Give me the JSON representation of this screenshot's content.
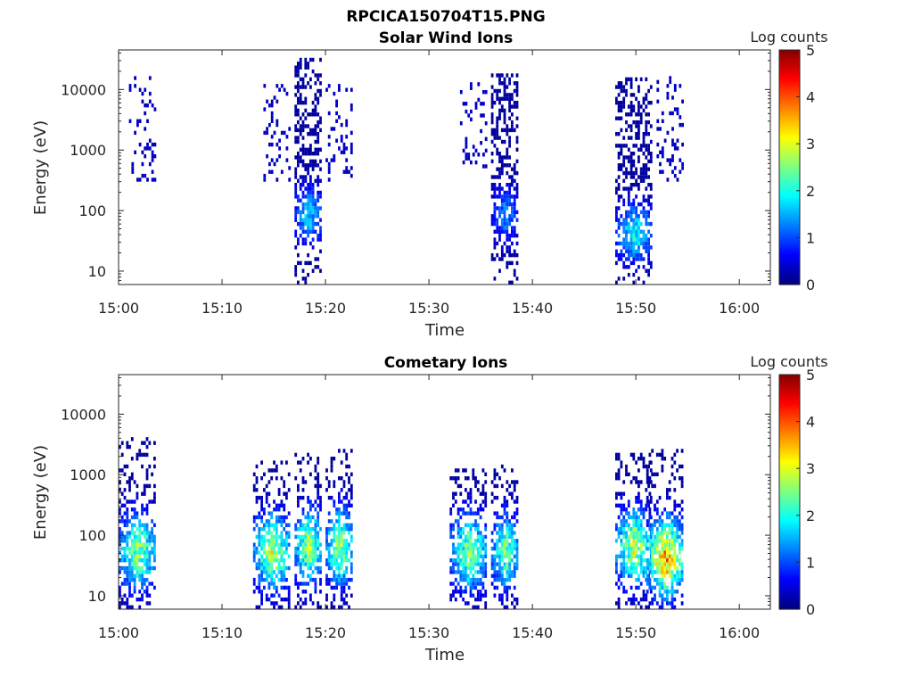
{
  "figure": {
    "title": "RPCICA150704T15.PNG"
  },
  "chart_data": [
    {
      "type": "heatmap",
      "title": "Solar Wind Ions",
      "xlabel": "Time",
      "ylabel": "Energy (eV)",
      "y_scale": "log",
      "xlim": [
        "15:00",
        "16:03"
      ],
      "ylim": [
        6,
        45000
      ],
      "x_ticks": [
        "15:00",
        "15:10",
        "15:20",
        "15:30",
        "15:40",
        "15:50",
        "16:00"
      ],
      "y_ticks": [
        "10",
        "100",
        "1000",
        "10000"
      ],
      "colorbar": {
        "label": "Log counts",
        "range": [
          0,
          5
        ],
        "ticks": [
          "0",
          "1",
          "2",
          "3",
          "4",
          "5"
        ],
        "colormap": "jet"
      },
      "grid": false,
      "bursts": [
        {
          "t_start": "15:01",
          "t_end": "15:03",
          "e_min": 300,
          "e_max": 15000,
          "peak_log_counts": 0.4,
          "peak_energy": 3000,
          "core": false
        },
        {
          "t_start": "15:14",
          "t_end": "15:16",
          "e_min": 300,
          "e_max": 12000,
          "peak_log_counts": 0.4,
          "peak_energy": 3000,
          "core": false
        },
        {
          "t_start": "15:17",
          "t_end": "15:19",
          "e_min": 6,
          "e_max": 30000,
          "peak_log_counts": 2.0,
          "peak_energy": 80,
          "core": true
        },
        {
          "t_start": "15:20",
          "t_end": "15:22",
          "e_min": 300,
          "e_max": 12000,
          "peak_log_counts": 0.4,
          "peak_energy": 3000,
          "core": false
        },
        {
          "t_start": "15:33",
          "t_end": "15:35",
          "e_min": 500,
          "e_max": 12000,
          "peak_log_counts": 0.4,
          "peak_energy": 3000,
          "core": false
        },
        {
          "t_start": "15:36",
          "t_end": "15:38",
          "e_min": 6,
          "e_max": 18000,
          "peak_log_counts": 1.5,
          "peak_energy": 80,
          "core": true
        },
        {
          "t_start": "15:48",
          "t_end": "15:51",
          "e_min": 6,
          "e_max": 15000,
          "peak_log_counts": 2.2,
          "peak_energy": 40,
          "core": true
        },
        {
          "t_start": "15:52",
          "t_end": "15:54",
          "e_min": 300,
          "e_max": 15000,
          "peak_log_counts": 0.4,
          "peak_energy": 2000,
          "core": false
        }
      ]
    },
    {
      "type": "heatmap",
      "title": "Cometary Ions",
      "xlabel": "Time",
      "ylabel": "Energy (eV)",
      "y_scale": "log",
      "xlim": [
        "15:00",
        "16:03"
      ],
      "ylim": [
        6,
        45000
      ],
      "x_ticks": [
        "15:00",
        "15:10",
        "15:20",
        "15:30",
        "15:40",
        "15:50",
        "16:00"
      ],
      "y_ticks": [
        "10",
        "100",
        "1000",
        "10000"
      ],
      "colorbar": {
        "label": "Log counts",
        "range": [
          0,
          5
        ],
        "ticks": [
          "0",
          "1",
          "2",
          "3",
          "4",
          "5"
        ],
        "colormap": "jet"
      },
      "grid": false,
      "bursts": [
        {
          "t_start": "15:00",
          "t_end": "15:03",
          "e_min": 6,
          "e_max": 4000,
          "peak_log_counts": 3.0,
          "peak_energy": 50
        },
        {
          "t_start": "15:13",
          "t_end": "15:16",
          "e_min": 6,
          "e_max": 1500,
          "peak_log_counts": 3.3,
          "peak_energy": 50
        },
        {
          "t_start": "15:17",
          "t_end": "15:19",
          "e_min": 6,
          "e_max": 2000,
          "peak_log_counts": 3.2,
          "peak_energy": 60
        },
        {
          "t_start": "15:20",
          "t_end": "15:22",
          "e_min": 6,
          "e_max": 2500,
          "peak_log_counts": 3.2,
          "peak_energy": 60
        },
        {
          "t_start": "15:32",
          "t_end": "15:35",
          "e_min": 6,
          "e_max": 1200,
          "peak_log_counts": 3.0,
          "peak_energy": 50
        },
        {
          "t_start": "15:36",
          "t_end": "15:38",
          "e_min": 6,
          "e_max": 1300,
          "peak_log_counts": 2.8,
          "peak_energy": 50
        },
        {
          "t_start": "15:48",
          "t_end": "15:51",
          "e_min": 6,
          "e_max": 2000,
          "peak_log_counts": 3.3,
          "peak_energy": 60
        },
        {
          "t_start": "15:51",
          "t_end": "15:54",
          "e_min": 6,
          "e_max": 2500,
          "peak_log_counts": 4.2,
          "peak_energy": 40
        }
      ]
    }
  ]
}
